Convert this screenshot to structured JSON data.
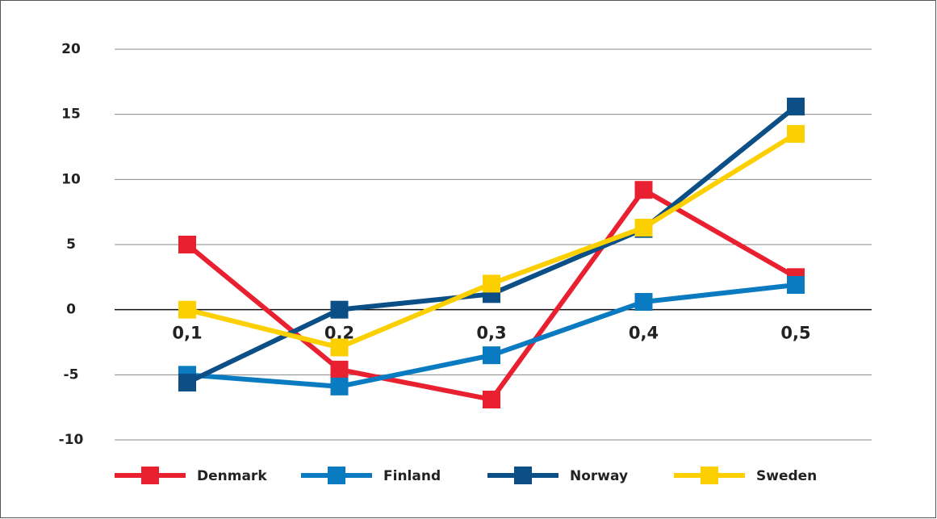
{
  "chart_data": {
    "type": "line",
    "categories": [
      "0,1",
      "0,2",
      "0,3",
      "0,4",
      "0,5"
    ],
    "series": [
      {
        "name": "Denmark",
        "color": "#e8202f",
        "values": [
          5,
          -4.6,
          -6.9,
          9.2,
          2.5
        ]
      },
      {
        "name": "Finland",
        "color": "#0a7bc0",
        "values": [
          -5.0,
          -5.9,
          -3.5,
          0.6,
          1.9
        ]
      },
      {
        "name": "Norway",
        "color": "#0b4f86",
        "values": [
          -5.6,
          0,
          1.2,
          6.2,
          15.6
        ]
      },
      {
        "name": "Sweden",
        "color": "#fcd000",
        "values": [
          0,
          -2.9,
          2.0,
          6.3,
          13.5
        ]
      }
    ],
    "ylim": [
      -10,
      20
    ],
    "yticks": [
      20,
      15,
      10,
      5,
      0,
      -5,
      -10
    ],
    "grid": true,
    "legend": "bottom"
  }
}
